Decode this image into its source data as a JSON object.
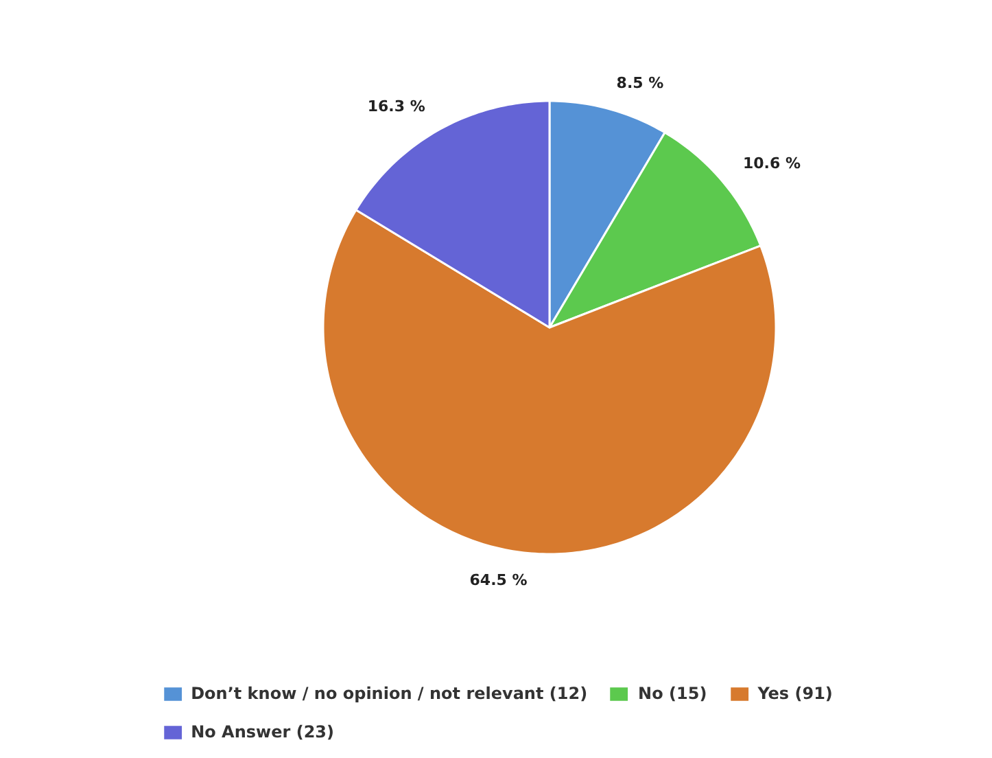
{
  "chart_data": {
    "type": "pie",
    "categories": [
      "Don’t know / no opinion / not relevant (12)",
      "No (15)",
      "Yes (91)",
      "No Answer (23)"
    ],
    "values": [
      8.5,
      10.6,
      64.5,
      16.3
    ],
    "value_labels": [
      "8.5 %",
      "10.6 %",
      "64.5 %",
      "16.3 %"
    ],
    "colors": [
      "#5592d6",
      "#5cc94e",
      "#d77a2e",
      "#6464d6"
    ],
    "legend": "bottom"
  }
}
